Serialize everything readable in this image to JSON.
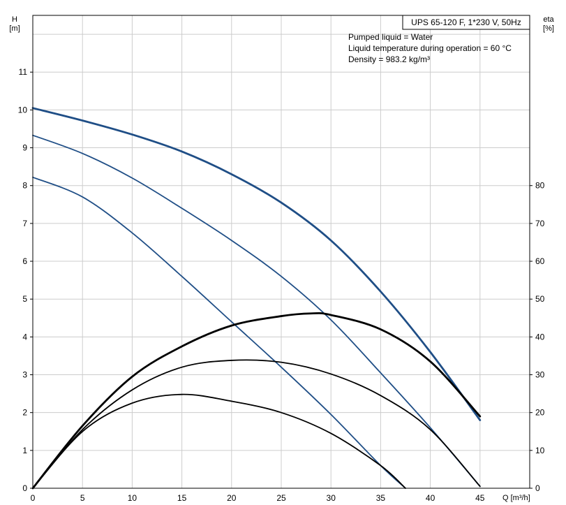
{
  "chart_data": {
    "type": "line",
    "title": "UPS 65-120 F, 1*230 V, 50Hz",
    "conditions": [
      "Pumped liquid = Water",
      "Liquid temperature during operation = 60 °C",
      "Density = 983.2 kg/m³"
    ],
    "x_axis": {
      "label": "Q [m³/h]",
      "range": [
        0,
        50
      ],
      "ticks": [
        0,
        5,
        10,
        15,
        20,
        25,
        30,
        35,
        40,
        45
      ]
    },
    "y_axis_left": {
      "label_top": "H",
      "label_unit": "[m]",
      "range": [
        0,
        12.5
      ],
      "ticks": [
        0,
        1,
        2,
        3,
        4,
        5,
        6,
        7,
        8,
        9,
        10,
        11
      ]
    },
    "y_axis_right": {
      "label_top": "eta",
      "label_unit": "[%]",
      "range": [
        0,
        125
      ],
      "ticks": [
        0,
        10,
        20,
        30,
        40,
        50,
        60,
        70,
        80
      ]
    },
    "grid": true,
    "colors": {
      "head": "#1f4e86",
      "efficiency": "#000000",
      "grid": "#cccccc"
    },
    "series": [
      {
        "kind": "head",
        "width": 2.8,
        "x": [
          0,
          5,
          10,
          15,
          20,
          25,
          30,
          35,
          40,
          45
        ],
        "y": [
          10.05,
          9.72,
          9.35,
          8.9,
          8.3,
          7.55,
          6.55,
          5.2,
          3.6,
          1.8
        ]
      },
      {
        "kind": "head",
        "width": 1.8,
        "x": [
          0,
          5,
          10,
          15,
          20,
          25,
          30,
          35,
          40,
          45
        ],
        "y": [
          9.33,
          8.85,
          8.2,
          7.4,
          6.55,
          5.6,
          4.45,
          3.05,
          1.6,
          0.05
        ]
      },
      {
        "kind": "head",
        "width": 1.8,
        "x": [
          0,
          5,
          10,
          15,
          20,
          25,
          30,
          35,
          37.5
        ],
        "y": [
          8.22,
          7.7,
          6.75,
          5.6,
          4.4,
          3.2,
          1.95,
          0.6,
          0
        ]
      },
      {
        "kind": "efficiency",
        "width": 2.8,
        "x": [
          0,
          5,
          10,
          15,
          20,
          25,
          28,
          30,
          35,
          40,
          45
        ],
        "y": [
          0,
          16.5,
          29.5,
          37.5,
          43,
          45.5,
          46.2,
          45.8,
          42,
          33.5,
          19
        ]
      },
      {
        "kind": "efficiency",
        "width": 1.8,
        "x": [
          0,
          5,
          10,
          15,
          20,
          25,
          30,
          35,
          40,
          45
        ],
        "y": [
          0,
          15.5,
          26,
          32,
          33.8,
          33.3,
          30.2,
          24.5,
          15.5,
          0.5
        ]
      },
      {
        "kind": "efficiency",
        "width": 1.8,
        "x": [
          0,
          5,
          10,
          15,
          20,
          25,
          30,
          35,
          37.5
        ],
        "y": [
          0,
          15,
          22.5,
          24.8,
          23,
          20,
          14.5,
          6,
          0
        ]
      }
    ]
  }
}
